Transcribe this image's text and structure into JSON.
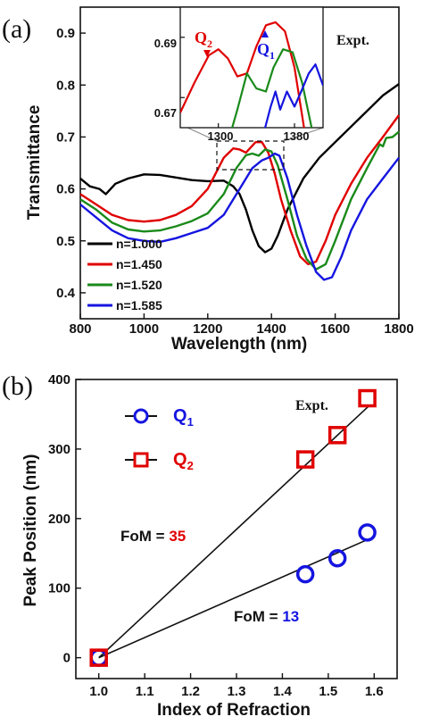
{
  "figure": {
    "panel_a_letter": "(a)",
    "panel_b_letter": "(b)"
  },
  "chart_data": [
    {
      "type": "line",
      "panel": "(a)",
      "xlabel": "Wavelength (nm)",
      "ylabel": "Transmittance",
      "xlim": [
        800,
        1800
      ],
      "ylim": [
        0.35,
        0.95
      ],
      "x_ticks": [
        "800",
        "1000",
        "1200",
        "1400",
        "1600",
        "1800"
      ],
      "y_ticks": [
        "0.4",
        "0.5",
        "0.6",
        "0.7",
        "0.8",
        "0.9"
      ],
      "annotation": "Expt.",
      "legend_position": "lower-left",
      "series": [
        {
          "name": "n=1.000",
          "color": "#000000",
          "points": [
            [
              800,
              0.62
            ],
            [
              830,
              0.605
            ],
            [
              860,
              0.6
            ],
            [
              880,
              0.59
            ],
            [
              910,
              0.61
            ],
            [
              950,
              0.62
            ],
            [
              1000,
              0.628
            ],
            [
              1050,
              0.627
            ],
            [
              1100,
              0.622
            ],
            [
              1150,
              0.617
            ],
            [
              1200,
              0.615
            ],
            [
              1250,
              0.616
            ],
            [
              1280,
              0.605
            ],
            [
              1300,
              0.59
            ],
            [
              1320,
              0.56
            ],
            [
              1340,
              0.52
            ],
            [
              1360,
              0.49
            ],
            [
              1380,
              0.478
            ],
            [
              1400,
              0.485
            ],
            [
              1420,
              0.51
            ],
            [
              1450,
              0.56
            ],
            [
              1500,
              0.62
            ],
            [
              1550,
              0.66
            ],
            [
              1600,
              0.69
            ],
            [
              1650,
              0.72
            ],
            [
              1700,
              0.75
            ],
            [
              1750,
              0.78
            ],
            [
              1800,
              0.802
            ]
          ]
        },
        {
          "name": "n=1.450",
          "color": "#e00000",
          "points": [
            [
              800,
              0.59
            ],
            [
              850,
              0.57
            ],
            [
              900,
              0.55
            ],
            [
              950,
              0.54
            ],
            [
              1000,
              0.537
            ],
            [
              1050,
              0.54
            ],
            [
              1100,
              0.55
            ],
            [
              1150,
              0.567
            ],
            [
              1200,
              0.6
            ],
            [
              1250,
              0.66
            ],
            [
              1280,
              0.678
            ],
            [
              1300,
              0.676
            ],
            [
              1320,
              0.67
            ],
            [
              1350,
              0.69
            ],
            [
              1370,
              0.69
            ],
            [
              1390,
              0.67
            ],
            [
              1410,
              0.63
            ],
            [
              1430,
              0.58
            ],
            [
              1460,
              0.52
            ],
            [
              1490,
              0.47
            ],
            [
              1515,
              0.455
            ],
            [
              1540,
              0.46
            ],
            [
              1570,
              0.5
            ],
            [
              1600,
              0.55
            ],
            [
              1650,
              0.61
            ],
            [
              1700,
              0.66
            ],
            [
              1750,
              0.7
            ],
            [
              1800,
              0.742
            ]
          ]
        },
        {
          "name": "n=1.520",
          "color": "#1a8a1a",
          "points": [
            [
              800,
              0.58
            ],
            [
              850,
              0.56
            ],
            [
              900,
              0.535
            ],
            [
              950,
              0.522
            ],
            [
              1000,
              0.518
            ],
            [
              1050,
              0.52
            ],
            [
              1100,
              0.528
            ],
            [
              1150,
              0.538
            ],
            [
              1200,
              0.553
            ],
            [
              1250,
              0.59
            ],
            [
              1290,
              0.64
            ],
            [
              1320,
              0.665
            ],
            [
              1340,
              0.668
            ],
            [
              1360,
              0.664
            ],
            [
              1380,
              0.676
            ],
            [
              1400,
              0.672
            ],
            [
              1420,
              0.645
            ],
            [
              1450,
              0.58
            ],
            [
              1480,
              0.51
            ],
            [
              1510,
              0.465
            ],
            [
              1540,
              0.445
            ],
            [
              1570,
              0.455
            ],
            [
              1600,
              0.5
            ],
            [
              1650,
              0.58
            ],
            [
              1700,
              0.64
            ],
            [
              1740,
              0.686
            ],
            [
              1750,
              0.682
            ],
            [
              1760,
              0.698
            ],
            [
              1780,
              0.7
            ],
            [
              1800,
              0.71
            ]
          ]
        },
        {
          "name": "n=1.585",
          "color": "#1515e0",
          "points": [
            [
              800,
              0.57
            ],
            [
              850,
              0.545
            ],
            [
              900,
              0.52
            ],
            [
              950,
              0.505
            ],
            [
              1000,
              0.5
            ],
            [
              1050,
              0.498
            ],
            [
              1100,
              0.505
            ],
            [
              1150,
              0.515
            ],
            [
              1200,
              0.525
            ],
            [
              1250,
              0.55
            ],
            [
              1300,
              0.6
            ],
            [
              1340,
              0.64
            ],
            [
              1370,
              0.655
            ],
            [
              1390,
              0.66
            ],
            [
              1410,
              0.668
            ],
            [
              1425,
              0.664
            ],
            [
              1450,
              0.62
            ],
            [
              1480,
              0.55
            ],
            [
              1510,
              0.49
            ],
            [
              1540,
              0.44
            ],
            [
              1565,
              0.425
            ],
            [
              1590,
              0.43
            ],
            [
              1620,
              0.47
            ],
            [
              1650,
              0.52
            ],
            [
              1700,
              0.58
            ],
            [
              1750,
              0.62
            ],
            [
              1800,
              0.66
            ]
          ]
        }
      ],
      "inset": {
        "xlim": [
          1260,
          1410
        ],
        "ylim": [
          0.66,
          0.7
        ],
        "x_ticks": [
          "1300",
          "1380"
        ],
        "y_ticks": [
          "0.67",
          "0.69"
        ],
        "labels": {
          "q2": {
            "main": "Q",
            "sub": "2",
            "color": "#e00000"
          },
          "q1": {
            "main": "Q",
            "sub": "1",
            "color": "#1515e0"
          }
        },
        "series": [
          {
            "name": "n=1.450",
            "color": "#e00000",
            "points": [
              [
                1260,
                0.665
              ],
              [
                1275,
                0.675
              ],
              [
                1290,
                0.684
              ],
              [
                1300,
                0.686
              ],
              [
                1310,
                0.683
              ],
              [
                1320,
                0.677
              ],
              [
                1330,
                0.678
              ],
              [
                1340,
                0.687
              ],
              [
                1350,
                0.694
              ],
              [
                1360,
                0.695
              ],
              [
                1370,
                0.692
              ],
              [
                1380,
                0.68
              ],
              [
                1390,
                0.66
              ]
            ]
          },
          {
            "name": "n=1.520",
            "color": "#1a8a1a",
            "points": [
              [
                1310,
                0.655
              ],
              [
                1320,
                0.666
              ],
              [
                1330,
                0.678
              ],
              [
                1340,
                0.673
              ],
              [
                1350,
                0.672
              ],
              [
                1358,
                0.68
              ],
              [
                1368,
                0.686
              ],
              [
                1378,
                0.685
              ],
              [
                1388,
                0.675
              ],
              [
                1398,
                0.66
              ]
            ]
          },
          {
            "name": "n=1.585",
            "color": "#1515e0",
            "points": [
              [
                1345,
                0.655
              ],
              [
                1355,
                0.667
              ],
              [
                1360,
                0.672
              ],
              [
                1365,
                0.666
              ],
              [
                1372,
                0.672
              ],
              [
                1380,
                0.667
              ],
              [
                1387,
                0.672
              ],
              [
                1395,
                0.678
              ],
              [
                1402,
                0.681
              ],
              [
                1410,
                0.674
              ]
            ]
          }
        ]
      }
    },
    {
      "type": "scatter",
      "panel": "(b)",
      "xlabel": "Index of Refraction",
      "ylabel": "Peak Position (nm)",
      "xlim": [
        0.95,
        1.65
      ],
      "ylim": [
        -30,
        400
      ],
      "x_ticks": [
        "1.0",
        "1.1",
        "1.2",
        "1.3",
        "1.4",
        "1.5",
        "1.6"
      ],
      "y_ticks": [
        "0",
        "100",
        "200",
        "300",
        "400"
      ],
      "annotation": "Expt.",
      "legend_position": "top-left",
      "series": [
        {
          "name": "Q",
          "sub": "1",
          "marker": "circle",
          "color": "#1515e0",
          "x": [
            1.0,
            1.45,
            1.52,
            1.585
          ],
          "y": [
            0,
            120,
            143,
            180
          ]
        },
        {
          "name": "Q",
          "sub": "2",
          "marker": "square",
          "color": "#e00000",
          "x": [
            1.0,
            1.45,
            1.52,
            1.585
          ],
          "y": [
            0,
            285,
            320,
            373
          ]
        }
      ],
      "fits": [
        {
          "slope": 615,
          "x_from": 1.0,
          "x_to": 1.59
        },
        {
          "slope": 290,
          "x_from": 1.0,
          "x_to": 1.59
        }
      ],
      "annotations": [
        {
          "prefix": "FoM = ",
          "value": "35",
          "value_color": "#e00000"
        },
        {
          "prefix": "FoM = ",
          "value": "13",
          "value_color": "#1515e0"
        }
      ]
    }
  ]
}
